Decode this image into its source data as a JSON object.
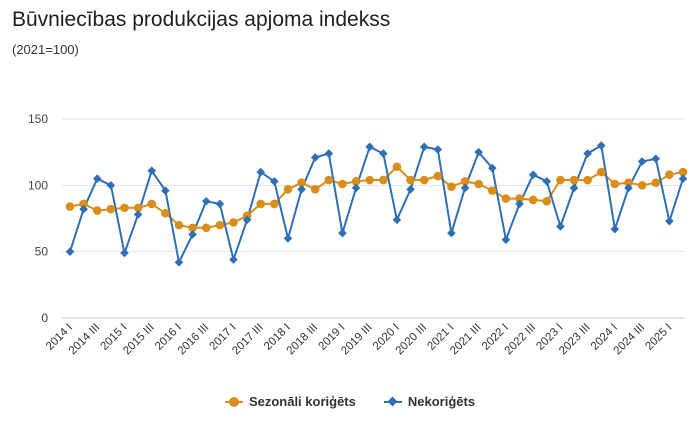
{
  "chart_data": {
    "type": "line",
    "title": "Būvniecības produkcijas apjoma indekss",
    "subtitle": "(2021=100)",
    "ylim": [
      0,
      150
    ],
    "yticks": [
      0,
      50,
      100,
      150
    ],
    "grid": true,
    "legend_position": "bottom",
    "categories": [
      "2014 I",
      "2014 II",
      "2014 III",
      "2014 IV",
      "2015 I",
      "2015 II",
      "2015 III",
      "2015 IV",
      "2016 I",
      "2016 II",
      "2016 III",
      "2016 IV",
      "2017 I",
      "2017 II",
      "2017 III",
      "2017 IV",
      "2018 I",
      "2018 II",
      "2018 III",
      "2018 IV",
      "2019 I",
      "2019 II",
      "2019 III",
      "2019 IV",
      "2020 I",
      "2020 II",
      "2020 III",
      "2020 IV",
      "2021 I",
      "2021 II",
      "2021 III",
      "2021 IV",
      "2022 I",
      "2022 II",
      "2022 III",
      "2022 IV",
      "2023 I",
      "2023 II",
      "2023 III",
      "2023 IV",
      "2024 I",
      "2024 II",
      "2024 III",
      "2024 IV",
      "2025 I",
      "2025 II"
    ],
    "tick_labels": [
      "2014 I",
      "2014 III",
      "2015 I",
      "2015 III",
      "2016 I",
      "2016 III",
      "2017 I",
      "2017 III",
      "2018 I",
      "2018 III",
      "2019 I",
      "2019 III",
      "2020 I",
      "2020 III",
      "2021 I",
      "2021 III",
      "2022 I",
      "2022 III",
      "2023 I",
      "2023 III",
      "2024 I",
      "2024 III",
      "2025 I"
    ],
    "series": [
      {
        "name": "Sezonāli koriģēts",
        "color": "#d98e1b",
        "marker": "circle",
        "values": [
          84,
          86,
          81,
          82,
          83,
          83,
          86,
          79,
          70,
          68,
          68,
          70,
          72,
          77,
          86,
          86,
          97,
          102,
          97,
          104,
          101,
          103,
          104,
          104,
          114,
          104,
          104,
          107,
          99,
          103,
          101,
          96,
          90,
          90,
          89,
          88,
          104,
          104,
          104,
          110,
          101,
          102,
          100,
          102,
          108,
          110
        ]
      },
      {
        "name": "Nekoriģēts",
        "color": "#2e6fb5",
        "marker": "diamond",
        "values": [
          50,
          82,
          105,
          100,
          49,
          78,
          111,
          96,
          42,
          63,
          88,
          86,
          44,
          74,
          110,
          103,
          60,
          97,
          121,
          124,
          64,
          98,
          129,
          124,
          74,
          97,
          129,
          127,
          64,
          98,
          125,
          113,
          59,
          86,
          108,
          103,
          69,
          98,
          124,
          130,
          67,
          98,
          118,
          120,
          73,
          105
        ]
      }
    ]
  }
}
